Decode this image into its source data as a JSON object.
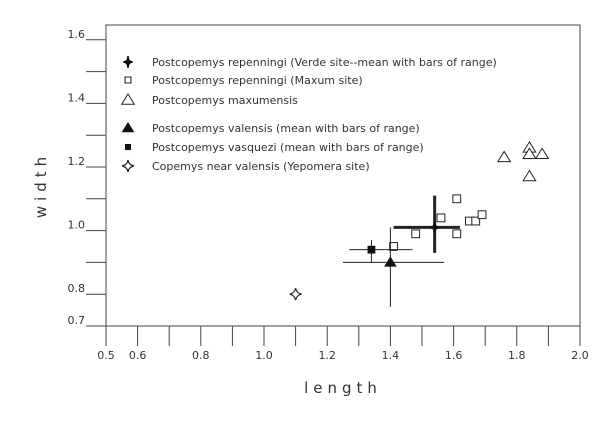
{
  "chart_data": {
    "type": "scatter",
    "title": "",
    "xlabel": "length",
    "ylabel": "width",
    "xlim": [
      0.5,
      2.0
    ],
    "ylim": [
      0.7,
      1.65
    ],
    "xticks": [
      0.5,
      0.6,
      0.7,
      0.8,
      0.9,
      1.0,
      1.1,
      1.2,
      1.3,
      1.4,
      1.5,
      1.6,
      1.7,
      1.8,
      1.9,
      2.0
    ],
    "xtick_labels": [
      "0.5",
      "0.6",
      "",
      "0.8",
      "",
      "1.0",
      "",
      "1.2",
      "",
      "1.4",
      "",
      "1.6",
      "",
      "1.8",
      "",
      "2.0"
    ],
    "yticks": [
      0.7,
      0.8,
      0.9,
      1.0,
      1.1,
      1.2,
      1.3,
      1.4,
      1.5,
      1.6
    ],
    "ytick_labels": [
      "0.7",
      "0.8",
      "",
      "1.0",
      "",
      "1.2",
      "",
      "1.4",
      "",
      "1.6"
    ],
    "grid": false,
    "legend_position": "top-left",
    "series": [
      {
        "name": "Postcopemys repenningi (Verde site--mean with bars of range)",
        "marker": "filled-diamond",
        "points": [
          {
            "x": 1.54,
            "y": 1.01,
            "xrange": [
              1.41,
              1.62
            ],
            "yrange": [
              0.93,
              1.11
            ]
          }
        ]
      },
      {
        "name": "Postcopemys repenningi (Maxum site)",
        "marker": "open-square",
        "points": [
          {
            "x": 1.61,
            "y": 1.1
          },
          {
            "x": 1.56,
            "y": 1.04
          },
          {
            "x": 1.65,
            "y": 1.03
          },
          {
            "x": 1.67,
            "y": 1.03
          },
          {
            "x": 1.69,
            "y": 1.05
          },
          {
            "x": 1.48,
            "y": 0.99
          },
          {
            "x": 1.61,
            "y": 0.99
          },
          {
            "x": 1.41,
            "y": 0.95
          }
        ]
      },
      {
        "name": "Postcopemys maxumensis",
        "marker": "open-triangle",
        "points": [
          {
            "x": 1.76,
            "y": 1.23
          },
          {
            "x": 1.84,
            "y": 1.26
          },
          {
            "x": 1.84,
            "y": 1.24
          },
          {
            "x": 1.88,
            "y": 1.24
          },
          {
            "x": 1.84,
            "y": 1.17
          }
        ]
      },
      {
        "name": "Postcopemys valensis (mean with bars of range)",
        "marker": "filled-triangle",
        "points": [
          {
            "x": 1.4,
            "y": 0.9,
            "xrange": [
              1.25,
              1.57
            ],
            "yrange": [
              0.76,
              1.01
            ]
          }
        ]
      },
      {
        "name": "Postcopemys vasquezi (mean with bars of range)",
        "marker": "filled-square",
        "points": [
          {
            "x": 1.34,
            "y": 0.94,
            "xrange": [
              1.27,
              1.47
            ],
            "yrange": [
              0.9,
              0.97
            ]
          }
        ]
      },
      {
        "name": "Copemys near valensis (Yepomera site)",
        "marker": "open-star",
        "points": [
          {
            "x": 1.1,
            "y": 0.8
          }
        ]
      }
    ]
  }
}
